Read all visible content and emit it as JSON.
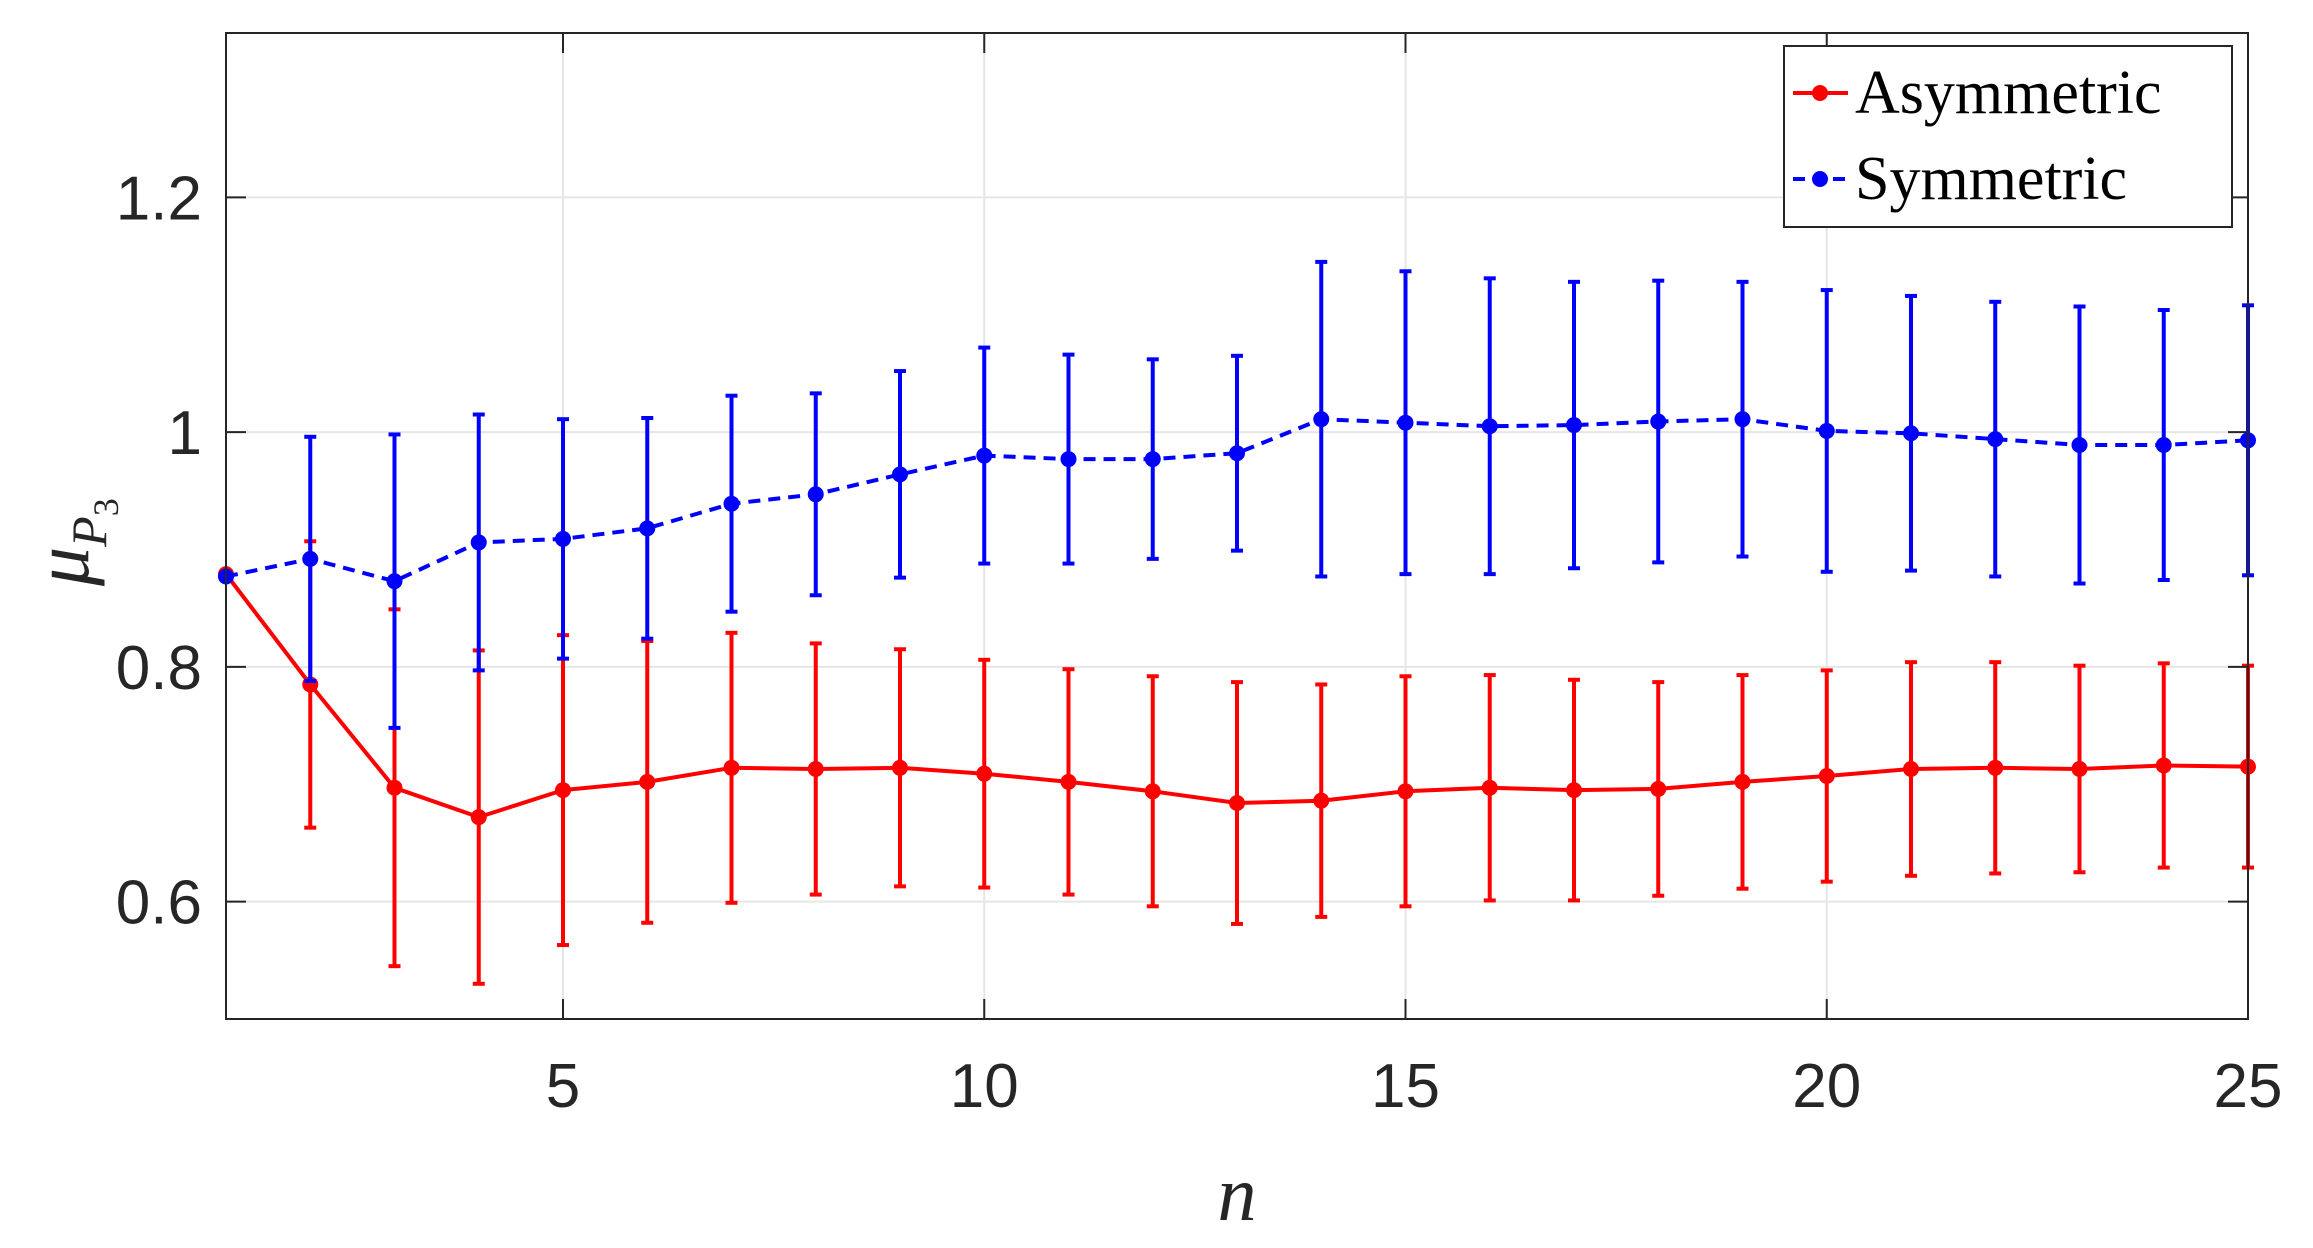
{
  "chart_data": {
    "type": "line",
    "title": "",
    "xlabel": "n",
    "ylabel": {
      "base": "μ",
      "sub": "P",
      "subsub": "3"
    },
    "xlim": [
      1,
      25
    ],
    "ylim": [
      0.5,
      1.34
    ],
    "xticks": [
      5,
      10,
      15,
      20,
      25
    ],
    "yticks": [
      0.6,
      0.8,
      1,
      1.2
    ],
    "xtick_labels": [
      "5",
      "10",
      "15",
      "20",
      "25"
    ],
    "ytick_labels": [
      "0.6",
      "0.8",
      "1",
      "1.2"
    ],
    "grid": true,
    "legend_position": "top-right",
    "error_bars": true,
    "x": [
      1,
      2,
      3,
      4,
      5,
      6,
      7,
      8,
      9,
      10,
      11,
      12,
      13,
      14,
      15,
      16,
      17,
      18,
      19,
      20,
      21,
      22,
      23,
      24,
      25
    ],
    "series": [
      {
        "name": "Asymmetric",
        "color": "#ff0000",
        "line_style": "solid",
        "values": [
          0.879,
          0.785,
          0.697,
          0.672,
          0.695,
          0.702,
          0.714,
          0.713,
          0.714,
          0.709,
          0.702,
          0.694,
          0.684,
          0.686,
          0.694,
          0.697,
          0.695,
          0.696,
          0.702,
          0.707,
          0.713,
          0.714,
          0.713,
          0.716,
          0.715
        ],
        "error": [
          null,
          0.122,
          0.152,
          0.142,
          0.132,
          0.12,
          0.115,
          0.107,
          0.101,
          0.097,
          0.096,
          0.098,
          0.103,
          0.099,
          0.098,
          0.096,
          0.094,
          0.091,
          0.091,
          0.09,
          0.091,
          0.09,
          0.088,
          0.087,
          0.086
        ]
      },
      {
        "name": "Symmetric",
        "color": "#0000ff",
        "line_style": "dashed",
        "values": [
          0.877,
          0.892,
          0.873,
          0.906,
          0.909,
          0.918,
          0.939,
          0.947,
          0.964,
          0.98,
          0.977,
          0.977,
          0.982,
          1.011,
          1.008,
          1.005,
          1.006,
          1.009,
          1.011,
          1.001,
          0.999,
          0.994,
          0.989,
          0.989,
          0.993
        ],
        "error": [
          null,
          0.104,
          0.125,
          0.109,
          0.102,
          0.094,
          0.092,
          0.086,
          0.088,
          0.092,
          0.089,
          0.085,
          0.083,
          0.134,
          0.129,
          0.126,
          0.122,
          0.12,
          0.117,
          0.12,
          0.117,
          0.117,
          0.118,
          0.115,
          0.115
        ]
      }
    ]
  }
}
